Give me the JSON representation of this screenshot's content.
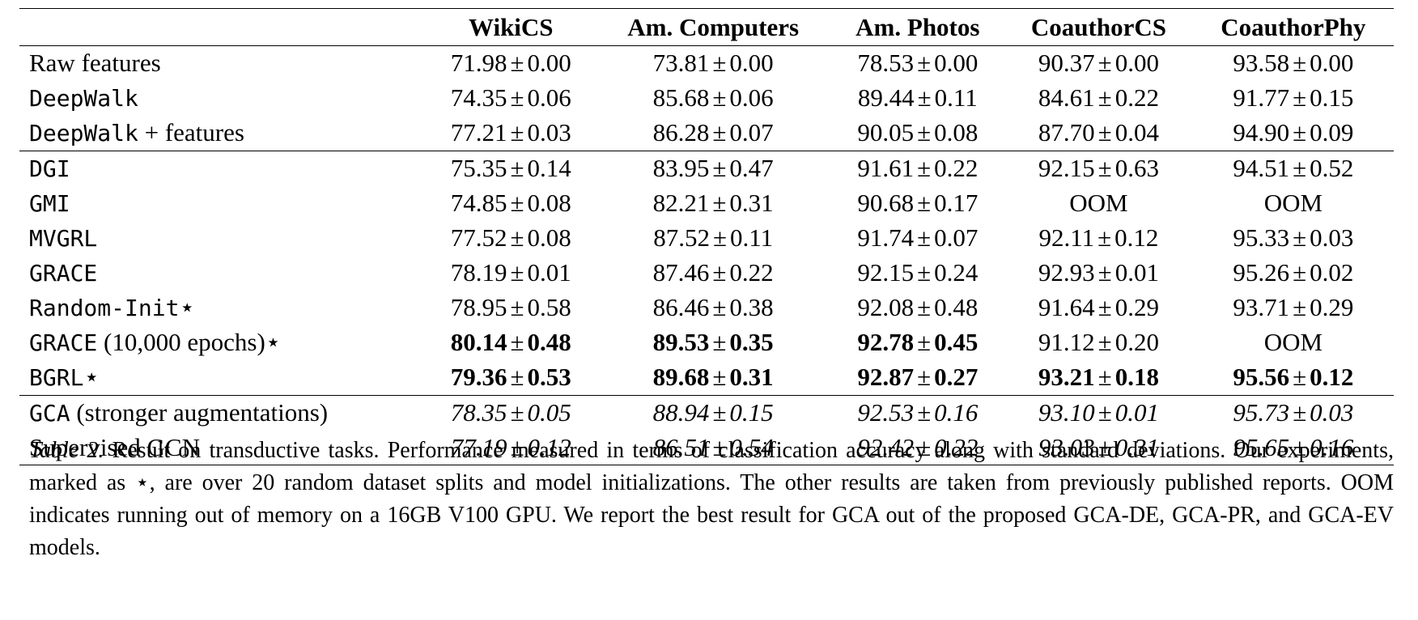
{
  "table": {
    "columns": [
      "",
      "WikiCS",
      "Am. Computers",
      "Am. Photos",
      "CoauthorCS",
      "CoauthorPhy"
    ],
    "rows": [
      {
        "method": "Raw features",
        "mono": "",
        "suffix": "",
        "style": "normal",
        "group_end": false,
        "cells": [
          {
            "v": "71.98",
            "s": "0.00",
            "b": false
          },
          {
            "v": "73.81",
            "s": "0.00",
            "b": false
          },
          {
            "v": "78.53",
            "s": "0.00",
            "b": false
          },
          {
            "v": "90.37",
            "s": "0.00",
            "b": false
          },
          {
            "v": "93.58",
            "s": "0.00",
            "b": false
          }
        ]
      },
      {
        "method": "",
        "mono": "DeepWalk",
        "suffix": "",
        "style": "normal",
        "group_end": false,
        "cells": [
          {
            "v": "74.35",
            "s": "0.06",
            "b": false
          },
          {
            "v": "85.68",
            "s": "0.06",
            "b": false
          },
          {
            "v": "89.44",
            "s": "0.11",
            "b": false
          },
          {
            "v": "84.61",
            "s": "0.22",
            "b": false
          },
          {
            "v": "91.77",
            "s": "0.15",
            "b": false
          }
        ]
      },
      {
        "method": "",
        "mono": "DeepWalk",
        "suffix": " + features",
        "style": "normal",
        "group_end": true,
        "cells": [
          {
            "v": "77.21",
            "s": "0.03",
            "b": false
          },
          {
            "v": "86.28",
            "s": "0.07",
            "b": false
          },
          {
            "v": "90.05",
            "s": "0.08",
            "b": false
          },
          {
            "v": "87.70",
            "s": "0.04",
            "b": false
          },
          {
            "v": "94.90",
            "s": "0.09",
            "b": false
          }
        ]
      },
      {
        "method": "",
        "mono": "DGI",
        "suffix": "",
        "style": "normal",
        "group_end": false,
        "cells": [
          {
            "v": "75.35",
            "s": "0.14",
            "b": false
          },
          {
            "v": "83.95",
            "s": "0.47",
            "b": false
          },
          {
            "v": "91.61",
            "s": "0.22",
            "b": false
          },
          {
            "v": "92.15",
            "s": "0.63",
            "b": false
          },
          {
            "v": "94.51",
            "s": "0.52",
            "b": false
          }
        ]
      },
      {
        "method": "",
        "mono": "GMI",
        "suffix": "",
        "style": "normal",
        "group_end": false,
        "cells": [
          {
            "v": "74.85",
            "s": "0.08",
            "b": false
          },
          {
            "v": "82.21",
            "s": "0.31",
            "b": false
          },
          {
            "v": "90.68",
            "s": "0.17",
            "b": false
          },
          {
            "text": "OOM"
          },
          {
            "text": "OOM"
          }
        ]
      },
      {
        "method": "",
        "mono": "MVGRL",
        "suffix": "",
        "style": "normal",
        "group_end": false,
        "cells": [
          {
            "v": "77.52",
            "s": "0.08",
            "b": false
          },
          {
            "v": "87.52",
            "s": "0.11",
            "b": false
          },
          {
            "v": "91.74",
            "s": "0.07",
            "b": false
          },
          {
            "v": "92.11",
            "s": "0.12",
            "b": false
          },
          {
            "v": "95.33",
            "s": "0.03",
            "b": false
          }
        ]
      },
      {
        "method": "",
        "mono": "GRACE",
        "suffix": "",
        "style": "normal",
        "group_end": false,
        "cells": [
          {
            "v": "78.19",
            "s": "0.01",
            "b": false
          },
          {
            "v": "87.46",
            "s": "0.22",
            "b": false
          },
          {
            "v": "92.15",
            "s": "0.24",
            "b": false
          },
          {
            "v": "92.93",
            "s": "0.01",
            "b": false
          },
          {
            "v": "95.26",
            "s": "0.02",
            "b": false
          }
        ]
      },
      {
        "method": "",
        "mono": "Random-Init",
        "suffix": "⋆",
        "style": "normal",
        "group_end": false,
        "cells": [
          {
            "v": "78.95",
            "s": "0.58",
            "b": false
          },
          {
            "v": "86.46",
            "s": "0.38",
            "b": false
          },
          {
            "v": "92.08",
            "s": "0.48",
            "b": false
          },
          {
            "v": "91.64",
            "s": "0.29",
            "b": false
          },
          {
            "v": "93.71",
            "s": "0.29",
            "b": false
          }
        ]
      },
      {
        "method": "",
        "mono": "GRACE",
        "suffix": " (10,000 epochs)⋆",
        "style": "normal",
        "group_end": false,
        "cells": [
          {
            "v": "80.14",
            "s": "0.48",
            "b": true
          },
          {
            "v": "89.53",
            "s": "0.35",
            "b": true
          },
          {
            "v": "92.78",
            "s": "0.45",
            "b": true
          },
          {
            "v": "91.12",
            "s": "0.20",
            "b": false
          },
          {
            "text": "OOM"
          }
        ]
      },
      {
        "method": "",
        "mono": "BGRL",
        "suffix": "⋆",
        "style": "normal",
        "group_end": true,
        "cells": [
          {
            "v": "79.36",
            "s": "0.53",
            "b": true
          },
          {
            "v": "89.68",
            "s": "0.31",
            "b": true
          },
          {
            "v": "92.87",
            "s": "0.27",
            "b": true
          },
          {
            "v": "93.21",
            "s": "0.18",
            "b": true
          },
          {
            "v": "95.56",
            "s": "0.12",
            "b": true
          }
        ]
      },
      {
        "method": "",
        "mono": "GCA",
        "suffix": " (stronger augmentations)",
        "style": "italic",
        "group_end": false,
        "cells": [
          {
            "v": "78.35",
            "s": "0.05",
            "b": false
          },
          {
            "v": "88.94",
            "s": "0.15",
            "b": false
          },
          {
            "v": "92.53",
            "s": "0.16",
            "b": false
          },
          {
            "v": "93.10",
            "s": "0.01",
            "b": false
          },
          {
            "v": "95.73",
            "s": "0.03",
            "b": false
          }
        ]
      },
      {
        "method": "Supervised GCN",
        "mono": "",
        "suffix": "",
        "style": "italic",
        "group_end": false,
        "cells": [
          {
            "v": "77.19",
            "s": "0.12",
            "b": false
          },
          {
            "v": "86.51",
            "s": "0.54",
            "b": false
          },
          {
            "v": "92.42",
            "s": "0.22",
            "b": false
          },
          {
            "v": "93.03",
            "s": "0.31",
            "b": false
          },
          {
            "v": "95.65",
            "s": "0.16",
            "b": false
          }
        ]
      }
    ],
    "pm": "±"
  },
  "caption": {
    "label": "Table 2.",
    "text": " Result on transductive tasks. Performance measured in terms of classification accuracy along with standard deviations. Our experiments, marked as ⋆, are over 20 random dataset splits and model initializations. The other results are taken from previously published reports. OOM indicates running out of memory on a 16GB V100 GPU. We report the best result for GCA out of the proposed GCA-DE, GCA-PR, and GCA-EV models."
  }
}
